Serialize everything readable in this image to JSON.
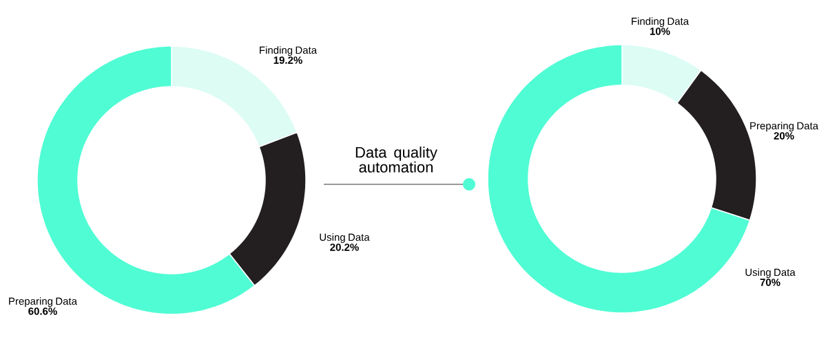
{
  "chart_data": [
    {
      "type": "donut",
      "categories": [
        "Finding Data",
        "Using Data",
        "Preparing Data"
      ],
      "values": [
        19.2,
        20.2,
        60.6
      ],
      "colors": [
        "#dcfcf4",
        "#231f20",
        "#50fcd4"
      ],
      "value_labels": [
        "19.2%",
        "20.2%",
        "60.6%"
      ]
    },
    {
      "type": "donut",
      "categories": [
        "Finding Data",
        "Preparing Data",
        "Using Data"
      ],
      "values": [
        10,
        20,
        70
      ],
      "colors": [
        "#dcfcf4",
        "#231f20",
        "#50fcd4"
      ],
      "value_labels": [
        "10%",
        "20%",
        "70%"
      ],
      "annotations": [
        "Data quality automation"
      ]
    }
  ]
}
